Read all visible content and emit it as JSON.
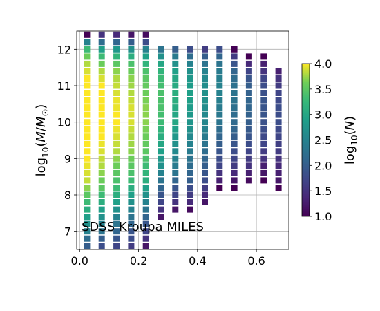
{
  "chart_data": {
    "type": "heatmap",
    "title": "",
    "annotation": "SDSS Kroupa MILES",
    "xlabel": "",
    "ylabel_parts": {
      "pre": "log",
      "sub": "10",
      "mid": "(",
      "italic1": "M",
      "slash": "/",
      "italic2": "M",
      "odot": "☉",
      "post": ")"
    },
    "xlim": [
      -0.01,
      0.71
    ],
    "ylim": [
      6.5,
      12.5
    ],
    "x_ticks": [
      0.0,
      0.2,
      0.4,
      0.6
    ],
    "x_tick_labels": [
      "0.0",
      "0.2",
      "0.4",
      "0.6"
    ],
    "y_ticks": [
      7,
      8,
      9,
      10,
      11,
      12
    ],
    "y_tick_labels": [
      "7",
      "8",
      "9",
      "10",
      "11",
      "12"
    ],
    "grid": true,
    "colormap": "viridis",
    "colorbar": {
      "label_parts": {
        "pre": "log",
        "sub": "10",
        "mid": "(",
        "italic": "N",
        "post": ")"
      },
      "range": [
        1.0,
        4.0
      ],
      "ticks": [
        1.0,
        1.5,
        2.0,
        2.5,
        3.0,
        3.5,
        4.0
      ],
      "tick_labels": [
        "1.0",
        "1.5",
        "2.0",
        "2.5",
        "3.0",
        "3.5",
        "4.0"
      ]
    },
    "x_bins": [
      0.025,
      0.075,
      0.125,
      0.175,
      0.225,
      0.275,
      0.325,
      0.375,
      0.425,
      0.475,
      0.525,
      0.575,
      0.625,
      0.675
    ],
    "y_step": 0.2,
    "columns": [
      {
        "x": 0.025,
        "y_start": 6.6,
        "values": [
          2.0,
          2.2,
          2.5,
          2.7,
          2.9,
          3.1,
          3.3,
          3.5,
          3.7,
          3.85,
          3.9,
          3.95,
          4.0,
          4.0,
          4.0,
          4.0,
          4.0,
          4.0,
          4.0,
          4.0,
          4.0,
          4.0,
          4.0,
          4.0,
          3.9,
          3.8,
          3.6,
          3.3,
          2.5,
          1.0
        ]
      },
      {
        "x": 0.075,
        "y_start": 6.6,
        "values": [
          1.8,
          2.0,
          2.3,
          2.5,
          2.7,
          2.9,
          3.1,
          3.3,
          3.5,
          3.6,
          3.7,
          3.8,
          3.85,
          3.9,
          3.95,
          4.0,
          4.0,
          4.0,
          4.0,
          4.0,
          4.0,
          4.0,
          4.0,
          3.9,
          3.8,
          3.6,
          3.3,
          2.9,
          2.2,
          1.5
        ]
      },
      {
        "x": 0.125,
        "y_start": 6.6,
        "values": [
          1.7,
          1.9,
          2.1,
          2.3,
          2.5,
          2.7,
          2.9,
          3.1,
          3.3,
          3.4,
          3.5,
          3.6,
          3.7,
          3.8,
          3.85,
          3.9,
          3.95,
          4.0,
          4.0,
          3.95,
          3.95,
          3.9,
          3.85,
          3.8,
          3.7,
          3.5,
          3.2,
          2.8,
          2.1,
          1.4
        ]
      },
      {
        "x": 0.175,
        "y_start": 6.6,
        "values": [
          1.6,
          1.8,
          1.9,
          2.1,
          2.3,
          2.5,
          2.7,
          2.9,
          3.1,
          3.3,
          3.4,
          3.5,
          3.6,
          3.7,
          3.75,
          3.8,
          3.85,
          3.9,
          3.9,
          3.9,
          3.85,
          3.8,
          3.75,
          3.7,
          3.6,
          3.4,
          3.1,
          2.7,
          2.0,
          1.2
        ]
      },
      {
        "x": 0.225,
        "y_start": 6.6,
        "values": [
          1.2,
          1.5,
          1.7,
          1.9,
          2.1,
          2.3,
          2.5,
          2.7,
          2.9,
          3.1,
          3.2,
          3.3,
          3.4,
          3.5,
          3.55,
          3.6,
          3.65,
          3.7,
          3.7,
          3.7,
          3.65,
          3.6,
          3.55,
          3.5,
          3.4,
          3.2,
          2.9,
          2.5,
          1.8,
          1.1
        ]
      },
      {
        "x": 0.275,
        "y_start": 7.4,
        "values": [
          1.2,
          1.5,
          1.7,
          1.9,
          2.1,
          2.3,
          2.5,
          2.7,
          2.8,
          2.9,
          3.0,
          3.1,
          3.2,
          3.3,
          3.35,
          3.4,
          3.4,
          3.4,
          3.35,
          3.3,
          3.2,
          3.0,
          2.7,
          2.3
        ]
      },
      {
        "x": 0.325,
        "y_start": 7.6,
        "values": [
          1.2,
          1.5,
          1.7,
          1.9,
          2.1,
          2.3,
          2.4,
          2.5,
          2.6,
          2.7,
          2.8,
          2.9,
          3.0,
          3.0,
          3.05,
          3.1,
          3.1,
          3.05,
          3.0,
          2.9,
          2.7,
          2.4,
          2.0
        ]
      },
      {
        "x": 0.375,
        "y_start": 7.6,
        "values": [
          1.1,
          1.4,
          1.6,
          1.8,
          2.0,
          2.1,
          2.2,
          2.3,
          2.4,
          2.5,
          2.6,
          2.7,
          2.75,
          2.8,
          2.85,
          2.9,
          2.9,
          2.85,
          2.8,
          2.7,
          2.5,
          2.2,
          1.8
        ]
      },
      {
        "x": 0.425,
        "y_start": 7.8,
        "values": [
          1.2,
          1.4,
          1.6,
          1.8,
          1.9,
          2.0,
          2.1,
          2.2,
          2.3,
          2.4,
          2.5,
          2.55,
          2.6,
          2.65,
          2.7,
          2.7,
          2.65,
          2.6,
          2.5,
          2.3,
          2.0,
          1.6
        ]
      },
      {
        "x": 0.475,
        "y_start": 8.2,
        "values": [
          1.0,
          1.3,
          1.5,
          1.7,
          1.8,
          1.9,
          2.0,
          2.1,
          2.2,
          2.3,
          2.35,
          2.4,
          2.45,
          2.5,
          2.5,
          2.45,
          2.4,
          2.3,
          2.1,
          1.8
        ]
      },
      {
        "x": 0.525,
        "y_start": 8.2,
        "values": [
          1.0,
          1.2,
          1.4,
          1.6,
          1.7,
          1.8,
          1.9,
          2.0,
          2.1,
          2.15,
          2.2,
          2.25,
          2.3,
          2.3,
          2.25,
          2.2,
          2.1,
          1.9,
          1.6,
          1.0
        ]
      },
      {
        "x": 0.575,
        "y_start": 8.4,
        "values": [
          1.1,
          1.3,
          1.5,
          1.6,
          1.7,
          1.8,
          1.9,
          1.95,
          2.0,
          2.05,
          2.1,
          2.1,
          2.05,
          2.0,
          1.9,
          1.7,
          1.4,
          1.0
        ]
      },
      {
        "x": 0.625,
        "y_start": 8.4,
        "values": [
          1.0,
          1.2,
          1.3,
          1.5,
          1.6,
          1.7,
          1.75,
          1.8,
          1.85,
          1.9,
          1.9,
          1.9,
          1.85,
          1.8,
          1.7,
          1.5,
          1.3,
          1.0
        ]
      },
      {
        "x": 0.675,
        "y_start": 8.2,
        "values": [
          1.0,
          1.2,
          1.3,
          1.4,
          1.5,
          1.6,
          1.65,
          1.7,
          1.75,
          1.8,
          1.8,
          1.8,
          1.75,
          1.7,
          1.6,
          1.5,
          1.3
        ]
      }
    ]
  }
}
